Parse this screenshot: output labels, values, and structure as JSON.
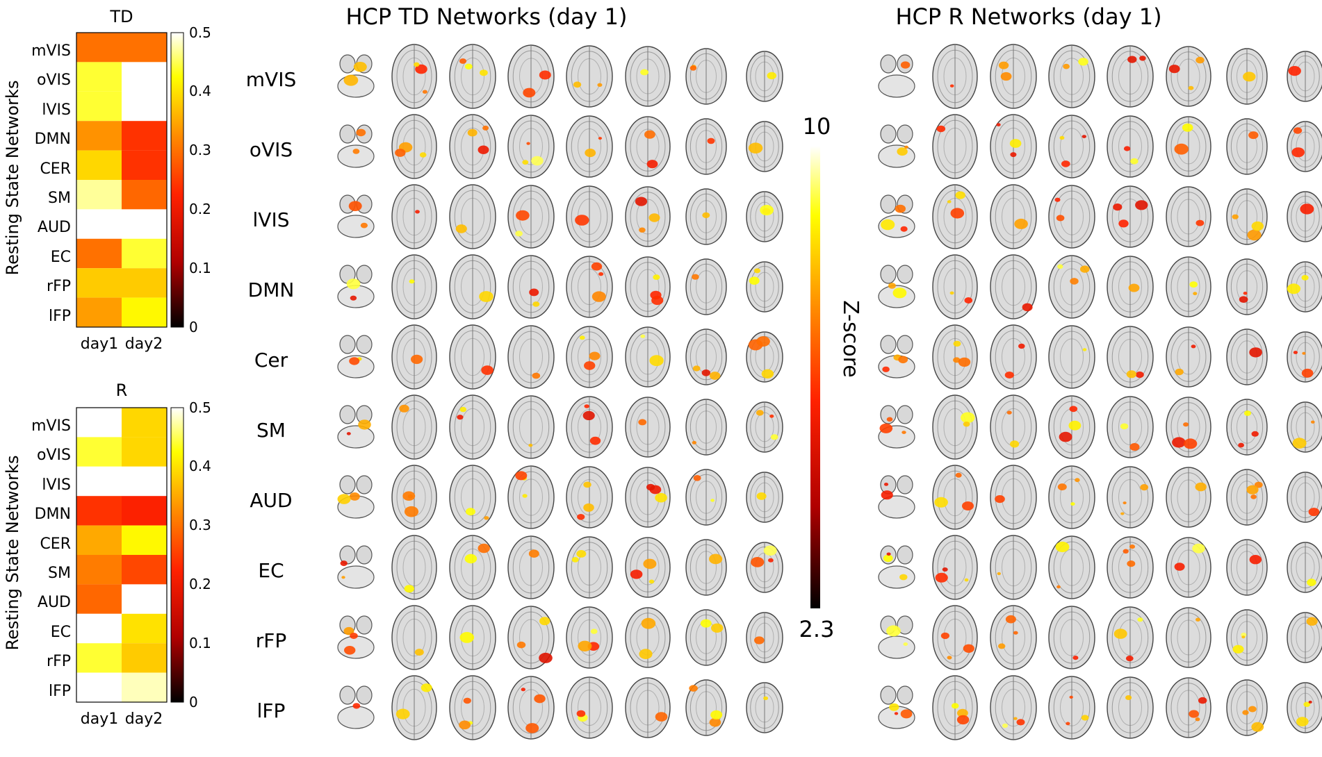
{
  "colorscale": {
    "stops": [
      "#000000",
      "#b00000",
      "#ff2200",
      "#ff8c00",
      "#ffff00",
      "#ffffff"
    ]
  },
  "heatmaps": {
    "y_axis_label": "Resting State Networks",
    "panels": [
      {
        "title": "TD",
        "rows": [
          "mVIS",
          "oVIS",
          "lVIS",
          "DMN",
          "CER",
          "SM",
          "AUD",
          "EC",
          "rFP",
          "lFP"
        ],
        "columns": [
          "day1",
          "day2"
        ],
        "colorbar_ticks": [
          "0",
          "0.1",
          "0.2",
          "0.3",
          "0.4",
          "0.5"
        ]
      },
      {
        "title": "R",
        "rows": [
          "mVIS",
          "oVIS",
          "lVIS",
          "DMN",
          "CER",
          "SM",
          "AUD",
          "EC",
          "rFP",
          "lFP"
        ],
        "columns": [
          "day1",
          "day2"
        ],
        "colorbar_ticks": [
          "0",
          "0.1",
          "0.2",
          "0.3",
          "0.4",
          "0.5"
        ]
      }
    ]
  },
  "chart_data": [
    {
      "type": "heatmap",
      "title": "TD",
      "xlabel": "",
      "ylabel": "Resting State Networks",
      "x": [
        "day1",
        "day2"
      ],
      "y": [
        "mVIS",
        "oVIS",
        "lVIS",
        "DMN",
        "CER",
        "SM",
        "AUD",
        "EC",
        "rFP",
        "lFP"
      ],
      "values": [
        [
          0.3,
          0.3
        ],
        [
          0.44,
          0.5
        ],
        [
          0.44,
          0.5
        ],
        [
          0.33,
          0.24
        ],
        [
          0.39,
          0.24
        ],
        [
          0.47,
          0.29
        ],
        [
          0.5,
          0.5
        ],
        [
          0.3,
          0.44
        ],
        [
          0.38,
          0.38
        ],
        [
          0.34,
          0.42
        ]
      ],
      "zlim": [
        0,
        0.5
      ],
      "colorbar": true
    },
    {
      "type": "heatmap",
      "title": "R",
      "xlabel": "",
      "ylabel": "Resting State Networks",
      "x": [
        "day1",
        "day2"
      ],
      "y": [
        "mVIS",
        "oVIS",
        "lVIS",
        "DMN",
        "CER",
        "SM",
        "AUD",
        "EC",
        "rFP",
        "lFP"
      ],
      "values": [
        [
          0.5,
          0.39
        ],
        [
          0.44,
          0.39
        ],
        [
          0.5,
          0.5
        ],
        [
          0.24,
          0.22
        ],
        [
          0.35,
          0.42
        ],
        [
          0.31,
          0.26
        ],
        [
          0.29,
          0.5
        ],
        [
          0.5,
          0.4
        ],
        [
          0.44,
          0.38
        ],
        [
          0.5,
          0.48
        ]
      ],
      "zlim": [
        0,
        0.5
      ],
      "colorbar": true
    }
  ],
  "brain_panels": [
    {
      "title": "HCP TD Networks (day 1)",
      "rows": [
        "mVIS",
        "oVIS",
        "lVIS",
        "DMN",
        "Cer",
        "SM",
        "AUD",
        "EC",
        "rFP",
        "lFP"
      ],
      "slices_per_row": 8
    },
    {
      "title": "HCP R Networks (day 1)",
      "rows": [
        "mVIS",
        "oVIS",
        "lVIS",
        "DMN",
        "CER",
        "SM",
        "AUD",
        "EC",
        "rFP",
        "lFP"
      ],
      "slices_per_row": 8
    }
  ],
  "zscore_bar": {
    "label": "Z-score",
    "max_label": "10",
    "min_label": "2.3"
  }
}
